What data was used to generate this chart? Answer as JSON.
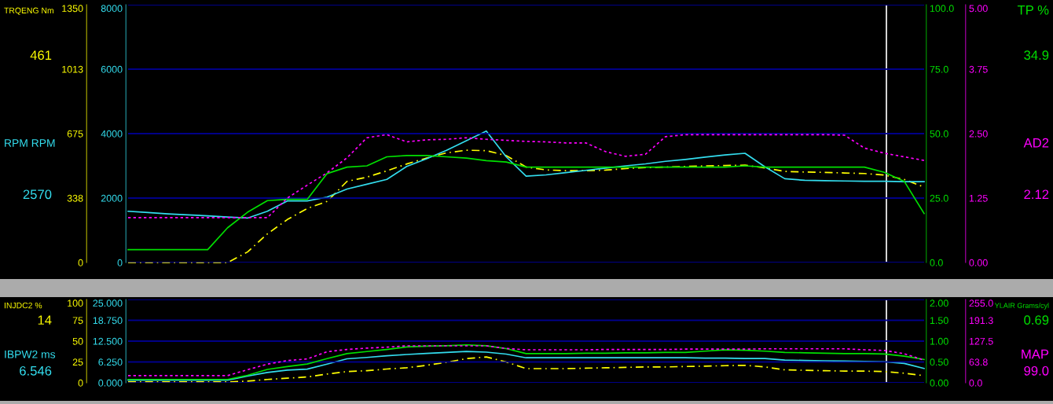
{
  "chart_data": [
    {
      "type": "line",
      "categories": [
        null,
        null,
        null,
        null,
        null,
        null,
        null,
        null,
        null,
        null,
        null,
        null,
        null,
        null,
        null,
        null,
        null,
        null,
        null,
        null,
        null,
        null,
        null,
        null,
        null,
        null,
        null,
        null,
        null,
        null,
        null,
        null,
        null,
        null,
        null,
        null,
        null,
        null,
        null,
        null,
        null
      ],
      "ylim": [
        0,
        1350
      ],
      "yticks": [
        0,
        {
          "value": 337.5,
          "label": "338"
        },
        675,
        {
          "value": 1012.5,
          "label": "1013"
        },
        1350
      ],
      "y2lim": [
        0,
        8000
      ],
      "y2ticks": [
        0,
        2000,
        4000,
        6000,
        8000
      ],
      "tick_labels": "y",
      "grid": "y",
      "series": [
        {
          "name": "TRQENG Nm",
          "color": "#ffff00",
          "line_style": "dashed",
          "values": [
            0,
            0,
            0,
            0,
            0,
            0,
            55,
            150,
            225,
            283,
            320,
            425,
            447,
            480,
            516,
            547,
            574,
            588,
            586,
            560,
            500,
            485,
            481,
            481,
            484,
            492,
            497,
            500,
            503,
            506,
            508,
            510,
            495,
            477,
            474,
            472,
            469,
            466,
            458,
            435,
            395
          ]
        },
        {
          "name": "RPM RPM",
          "color": "#33ddee",
          "axis": "y2",
          "line_style": "solid",
          "values": [
            1590,
            1550,
            1510,
            1480,
            1450,
            1410,
            1380,
            1590,
            1910,
            1910,
            2030,
            2280,
            2430,
            2580,
            2980,
            3220,
            3480,
            3780,
            4080,
            3280,
            2680,
            2720,
            2790,
            2860,
            2930,
            3000,
            3060,
            3140,
            3200,
            3270,
            3340,
            3390,
            2970,
            2600,
            2550,
            2540,
            2530,
            2520,
            2520,
            2510,
            2510
          ]
        }
      ],
      "annotations": [
        "461",
        "2570"
      ]
    },
    {
      "type": "line",
      "categories": [
        null,
        null,
        null,
        null,
        null,
        null,
        null,
        null,
        null,
        null,
        null,
        null,
        null,
        null,
        null,
        null,
        null,
        null,
        null,
        null,
        null,
        null,
        null,
        null,
        null,
        null,
        null,
        null,
        null,
        null,
        null,
        null,
        null,
        null,
        null,
        null,
        null,
        null,
        null,
        null,
        null
      ],
      "ylim": [
        0,
        100
      ],
      "yticks": [
        {
          "value": 0,
          "label": "0.0"
        },
        {
          "value": 25,
          "label": "25.0"
        },
        {
          "value": 50,
          "label": "50.0"
        },
        {
          "value": 75,
          "label": "75.0"
        },
        {
          "value": 100,
          "label": "100.0"
        }
      ],
      "y2lim": [
        0,
        5
      ],
      "y2ticks": [
        {
          "value": 0,
          "label": "0.00"
        },
        {
          "value": 1.25,
          "label": "1.25"
        },
        {
          "value": 2.5,
          "label": "2.50"
        },
        {
          "value": 3.75,
          "label": "3.75"
        },
        {
          "value": 5,
          "label": "5.00"
        }
      ],
      "tick_labels": "y",
      "grid": "y",
      "series": [
        {
          "name": "TP %",
          "color": "#00e000",
          "line_style": "solid",
          "values": [
            5,
            5,
            5,
            5,
            5,
            13.5,
            19.5,
            24,
            24.5,
            24.5,
            34.5,
            37,
            37.5,
            41,
            41.5,
            41.5,
            41,
            40.5,
            39.5,
            39,
            37,
            37,
            37,
            37,
            37,
            37,
            37,
            37,
            37,
            37,
            37,
            37.5,
            37,
            37,
            37,
            37,
            37,
            37,
            35,
            31.5,
            19
          ]
        },
        {
          "name": "AD2",
          "color": "#ff00ff",
          "axis": "y2",
          "line_style": "dotted",
          "values": [
            0.87,
            0.87,
            0.87,
            0.87,
            0.87,
            0.87,
            0.87,
            0.87,
            1.25,
            1.5,
            1.74,
            2.03,
            2.42,
            2.48,
            2.34,
            2.38,
            2.39,
            2.42,
            2.39,
            2.37,
            2.35,
            2.34,
            2.32,
            2.32,
            2.15,
            2.06,
            2.1,
            2.44,
            2.48,
            2.48,
            2.48,
            2.48,
            2.48,
            2.48,
            2.48,
            2.48,
            2.47,
            2.22,
            2.12,
            2.05,
            1.98
          ]
        }
      ],
      "annotations": [
        "34.9",
        "2.12"
      ]
    },
    {
      "type": "line",
      "categories": [
        null,
        null,
        null,
        null,
        null,
        null,
        null,
        null,
        null,
        null,
        null,
        null,
        null,
        null,
        null,
        null,
        null,
        null,
        null,
        null,
        null,
        null,
        null,
        null,
        null,
        null,
        null,
        null,
        null,
        null,
        null,
        null,
        null,
        null,
        null,
        null,
        null,
        null,
        null,
        null,
        null
      ],
      "ylim": [
        0,
        100
      ],
      "yticks": [
        0,
        25,
        50,
        75,
        100
      ],
      "y2lim": [
        0,
        25
      ],
      "y2ticks": [
        {
          "value": 0,
          "label": "0.000"
        },
        {
          "value": 6.25,
          "label": "6.250"
        },
        {
          "value": 12.5,
          "label": "12.500"
        },
        {
          "value": 18.75,
          "label": "18.750"
        },
        {
          "value": 25,
          "label": "25.000"
        }
      ],
      "tick_labels": "y",
      "grid": "y",
      "series": [
        {
          "name": "INJDC2 %",
          "color": "#ffff00",
          "line_style": "dashed",
          "values": [
            1,
            1,
            1,
            1,
            1,
            1,
            2,
            4,
            5.5,
            7,
            10.5,
            13.5,
            14.5,
            16.5,
            18,
            21,
            24.5,
            29,
            31,
            25,
            17,
            17,
            17,
            17.5,
            18,
            18.5,
            19,
            19,
            19.5,
            20,
            20.5,
            21,
            19,
            15.5,
            15,
            14.5,
            14,
            14,
            13.5,
            11.5,
            8.5
          ]
        },
        {
          "name": "IBPW2 ms",
          "color": "#33ddee",
          "axis": "y2",
          "line_style": "solid",
          "values": [
            0.8,
            0.8,
            0.8,
            0.8,
            0.8,
            0.8,
            2.0,
            3.1,
            3.8,
            4.1,
            5.6,
            7.2,
            7.6,
            8.1,
            8.5,
            8.8,
            9.1,
            9.4,
            9.2,
            8.6,
            7.5,
            7.5,
            7.5,
            7.5,
            7.5,
            7.5,
            7.5,
            7.5,
            7.5,
            7.4,
            7.4,
            7.3,
            7.3,
            6.8,
            6.7,
            6.6,
            6.5,
            6.4,
            6.3,
            5.8,
            4.3
          ]
        }
      ],
      "annotations": [
        "14",
        "6.546"
      ]
    },
    {
      "type": "line",
      "categories": [
        null,
        null,
        null,
        null,
        null,
        null,
        null,
        null,
        null,
        null,
        null,
        null,
        null,
        null,
        null,
        null,
        null,
        null,
        null,
        null,
        null,
        null,
        null,
        null,
        null,
        null,
        null,
        null,
        null,
        null,
        null,
        null,
        null,
        null,
        null,
        null,
        null,
        null,
        null,
        null,
        null
      ],
      "ylim": [
        0,
        2
      ],
      "yticks": [
        {
          "value": 0,
          "label": "0.00"
        },
        {
          "value": 0.5,
          "label": "0.50"
        },
        {
          "value": 1,
          "label": "1.00"
        },
        {
          "value": 1.5,
          "label": "1.50"
        },
        {
          "value": 2,
          "label": "2.00"
        }
      ],
      "y2lim": [
        0,
        255
      ],
      "y2ticks": [
        {
          "value": 0,
          "label": "0.0"
        },
        {
          "value": 63.75,
          "label": "63.8"
        },
        {
          "value": 127.5,
          "label": "127.5"
        },
        {
          "value": 191.25,
          "label": "191.3"
        },
        {
          "value": 255,
          "label": "255.0"
        }
      ],
      "tick_labels": "y",
      "grid": "y",
      "series": [
        {
          "name": "YLAIR Grams/cyl",
          "color": "#00e000",
          "line_style": "solid",
          "values": [
            0.08,
            0.08,
            0.08,
            0.08,
            0.08,
            0.08,
            0.18,
            0.32,
            0.39,
            0.45,
            0.58,
            0.7,
            0.75,
            0.8,
            0.86,
            0.88,
            0.89,
            0.91,
            0.89,
            0.82,
            0.7,
            0.7,
            0.7,
            0.71,
            0.71,
            0.72,
            0.72,
            0.73,
            0.73,
            0.76,
            0.79,
            0.78,
            0.76,
            0.73,
            0.72,
            0.71,
            0.7,
            0.7,
            0.69,
            0.64,
            0.56
          ]
        },
        {
          "name": "MAP",
          "color": "#ff00ff",
          "axis": "y2",
          "line_style": "dotted",
          "values": [
            22,
            22,
            22,
            22,
            22,
            22,
            40,
            57,
            68,
            73,
            95,
            102,
            106,
            109,
            113,
            113,
            113,
            113,
            113,
            105,
            101,
            101,
            101,
            101,
            102,
            102,
            102,
            102,
            103,
            103,
            103,
            103,
            104,
            104,
            104,
            104,
            104,
            101,
            99,
            89,
            69
          ]
        }
      ],
      "annotations": [
        "0.69",
        "99.0"
      ]
    }
  ]
}
